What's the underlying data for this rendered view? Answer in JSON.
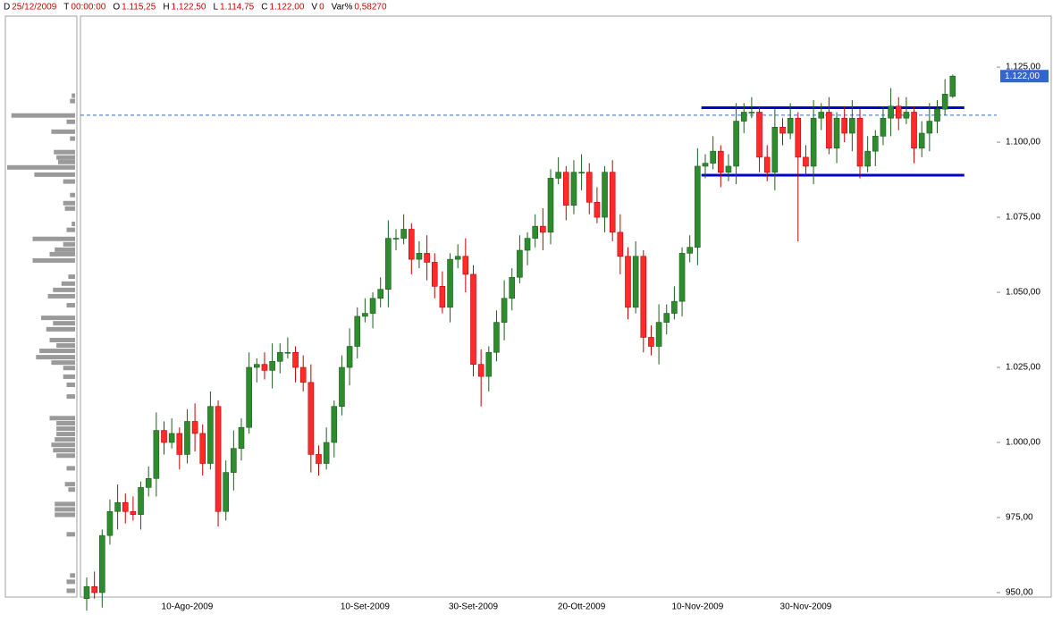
{
  "chart_data": {
    "type": "candlestick",
    "header": [
      {
        "label": "D",
        "value": "25/12/2009"
      },
      {
        "label": "T",
        "value": "00:00:00"
      },
      {
        "label": "O",
        "value": "1.115,25"
      },
      {
        "label": "H",
        "value": "1.122,50"
      },
      {
        "label": "L",
        "value": "1.114,75"
      },
      {
        "label": "C",
        "value": "1.122,00"
      },
      {
        "label": "V",
        "value": "0"
      },
      {
        "label": "Var%",
        "value": "0,58270"
      }
    ],
    "categories": [
      null,
      null,
      null,
      null,
      null,
      null,
      null,
      null,
      null,
      null,
      null,
      null,
      null,
      "10-Ago-2009",
      null,
      null,
      null,
      null,
      null,
      null,
      null,
      null,
      null,
      null,
      null,
      null,
      null,
      null,
      null,
      null,
      null,
      null,
      null,
      null,
      null,
      null,
      "10-Set-2009",
      null,
      null,
      null,
      null,
      null,
      null,
      null,
      null,
      null,
      null,
      null,
      null,
      null,
      "30-Set-2009",
      null,
      null,
      null,
      null,
      null,
      null,
      null,
      null,
      null,
      null,
      null,
      null,
      null,
      "20-Ott-2009",
      null,
      null,
      null,
      null,
      null,
      null,
      null,
      null,
      null,
      null,
      null,
      null,
      null,
      null,
      "10-Nov-2009",
      null,
      null,
      null,
      null,
      null,
      null,
      null,
      null,
      null,
      null,
      null,
      null,
      null,
      "30-Nov-2009",
      null,
      null,
      null,
      null,
      null,
      null,
      null,
      null,
      null,
      null,
      null,
      null,
      null,
      null,
      null,
      null,
      null,
      null,
      null
    ],
    "open": [
      948,
      952,
      950,
      969,
      977,
      980,
      977,
      976,
      985,
      988,
      1004,
      1000,
      1003,
      996,
      1007,
      1003,
      993,
      1012,
      977,
      990,
      998,
      1005,
      1025,
      1026,
      1024,
      1027,
      1030,
      1030,
      1025,
      1020,
      996,
      993,
      1000,
      1012,
      1025,
      1032,
      1042,
      1043,
      1048,
      1051,
      1068,
      1068,
      1071,
      1061,
      1063,
      1060,
      1052,
      1045,
      1061,
      1062,
      1056,
      1026,
      1022,
      1030,
      1040,
      1048,
      1055,
      1064,
      1068,
      1072,
      1070,
      1088,
      1090,
      1079,
      1090,
      1090,
      1080,
      1075,
      1090,
      1070,
      1062,
      1045,
      1062,
      1035,
      1032,
      1040,
      1043,
      1047,
      1063,
      1065,
      1092,
      1093,
      1097,
      1090,
      1092,
      1107,
      1110,
      1110,
      1095,
      1090,
      1105,
      1103,
      1108,
      1095,
      1092,
      1108,
      1110,
      1098,
      1108,
      1103,
      1108,
      1092,
      1097,
      1102,
      1108,
      1112,
      1108,
      1110,
      1098,
      1103,
      1107,
      1111,
      1115.25
    ],
    "high": [
      955,
      957,
      971,
      981,
      986,
      983,
      982,
      987,
      992,
      1010,
      1007,
      1008,
      1005,
      1011,
      1013,
      1006,
      1017,
      1014,
      994,
      1004,
      1008,
      1030,
      1028,
      1030,
      1033,
      1033,
      1035,
      1032,
      1029,
      1026,
      999,
      1005,
      1014,
      1029,
      1038,
      1045,
      1048,
      1050,
      1055,
      1074,
      1071,
      1076,
      1073,
      1067,
      1069,
      1063,
      1057,
      1063,
      1066,
      1068,
      1059,
      1031,
      1032,
      1044,
      1054,
      1058,
      1069,
      1070,
      1076,
      1078,
      1091,
      1095,
      1092,
      1094,
      1096,
      1093,
      1085,
      1092,
      1094,
      1076,
      1065,
      1067,
      1064,
      1039,
      1046,
      1046,
      1052,
      1065,
      1069,
      1098,
      1096,
      1102,
      1099,
      1096,
      1113,
      1113,
      1115,
      1112,
      1099,
      1111,
      1108,
      1113,
      1110,
      1099,
      1114,
      1113,
      1115,
      1110,
      1112,
      1114,
      1111,
      1102,
      1104,
      1112,
      1118,
      1115,
      1115,
      1112,
      1107,
      1113,
      1114,
      1121,
      1122.5
    ],
    "low": [
      944,
      948,
      945,
      966,
      971,
      973,
      974,
      971,
      982,
      982,
      996,
      998,
      991,
      993,
      997,
      989,
      991,
      972,
      974,
      984,
      994,
      1003,
      1020,
      1021,
      1018,
      1023,
      1028,
      1020,
      1017,
      990,
      989,
      991,
      995,
      1009,
      1019,
      1028,
      1040,
      1038,
      1045,
      1045,
      1064,
      1066,
      1056,
      1058,
      1054,
      1048,
      1043,
      1040,
      1058,
      1050,
      1022,
      1012,
      1017,
      1027,
      1034,
      1044,
      1053,
      1059,
      1065,
      1064,
      1066,
      1086,
      1074,
      1076,
      1084,
      1076,
      1073,
      1070,
      1067,
      1056,
      1041,
      1043,
      1030,
      1029,
      1026,
      1036,
      1041,
      1042,
      1060,
      1059,
      1088,
      1091,
      1085,
      1087,
      1086,
      1103,
      1108,
      1090,
      1087,
      1084,
      1099,
      1101,
      1067,
      1089,
      1086,
      1104,
      1096,
      1093,
      1100,
      1097,
      1088,
      1090,
      1092,
      1099,
      1102,
      1104,
      1106,
      1093,
      1095,
      1097,
      1103,
      1109,
      1114.75
    ],
    "close": [
      952,
      950,
      969,
      977,
      980,
      977,
      976,
      985,
      988,
      1004,
      1000,
      1003,
      996,
      1007,
      1003,
      993,
      1012,
      977,
      990,
      998,
      1005,
      1025,
      1026,
      1024,
      1027,
      1030,
      1030,
      1025,
      1020,
      996,
      993,
      1000,
      1012,
      1025,
      1032,
      1042,
      1043,
      1048,
      1051,
      1068,
      1068,
      1071,
      1061,
      1063,
      1060,
      1052,
      1045,
      1061,
      1062,
      1056,
      1026,
      1022,
      1030,
      1040,
      1048,
      1055,
      1064,
      1068,
      1072,
      1070,
      1088,
      1090,
      1079,
      1090,
      1090,
      1080,
      1075,
      1090,
      1070,
      1062,
      1045,
      1062,
      1035,
      1032,
      1040,
      1043,
      1047,
      1063,
      1065,
      1092,
      1093,
      1097,
      1090,
      1092,
      1107,
      1110,
      1110,
      1095,
      1090,
      1105,
      1103,
      1108,
      1095,
      1092,
      1108,
      1110,
      1098,
      1108,
      1103,
      1108,
      1092,
      1097,
      1102,
      1108,
      1112,
      1108,
      1110,
      1098,
      1103,
      1107,
      1111,
      1116,
      1122
    ],
    "up_color": "#2e8b2e",
    "down_color": "#ff2a2a",
    "ylim": [
      948.5,
      1142
    ],
    "yticks": [
      {
        "value": 950,
        "label": "950,00"
      },
      {
        "value": 975,
        "label": "975,00"
      },
      {
        "value": 1000,
        "label": "1.000,00"
      },
      {
        "value": 1025,
        "label": "1.025,00"
      },
      {
        "value": 1050,
        "label": "1.050,00"
      },
      {
        "value": 1075,
        "label": "1.075,00"
      },
      {
        "value": 1100,
        "label": "1.100,00"
      },
      {
        "value": 1125,
        "label": "1.125,00"
      }
    ],
    "grid": false,
    "last_price": {
      "value": 1122,
      "label": "1.122,00",
      "color": "#3366cc"
    },
    "annotations": [
      {
        "type": "hline",
        "value": 1109,
        "color": "#3366cc",
        "style": "dashed"
      },
      {
        "type": "segment",
        "value": 1111.5,
        "from": 79.5,
        "to": 113.5,
        "color": "#0000cc",
        "style": "solid"
      },
      {
        "type": "segment",
        "value": 1089,
        "from": 79.5,
        "to": 113.5,
        "color": "#0000cc",
        "style": "solid"
      }
    ],
    "volume_profile": {
      "color": "#9a9a9a",
      "xlim": [
        0,
        80
      ],
      "levels": [
        1115.5,
        1113.7,
        1108.9,
        1106.8,
        1103.5,
        1101.2,
        1096.7,
        1094.9,
        1093.4,
        1091.6,
        1089.2,
        1086.9,
        1082.4,
        1079.7,
        1077.9,
        1072.8,
        1070.8,
        1067.8,
        1066,
        1064.2,
        1062.7,
        1060.6,
        1055.2,
        1052.9,
        1050.8,
        1048.7,
        1045.7,
        1041.5,
        1039.7,
        1037.7,
        1034.1,
        1032.3,
        1030.5,
        1028.4,
        1026.6,
        1024.8,
        1021.9,
        1019.2,
        1015.3,
        1008.1,
        1006.4,
        1004.6,
        1002.8,
        1001,
        999.2,
        997.4,
        995.6,
        991.4,
        986.1,
        984.3,
        979.5,
        977.7,
        975.9,
        969.4,
        955.7,
        953.6,
        950.6
      ],
      "values": [
        4,
        6,
        75,
        10,
        28,
        6,
        25,
        22,
        20,
        80,
        48,
        14,
        6,
        14,
        12,
        4,
        10,
        50,
        14,
        24,
        30,
        50,
        8,
        16,
        26,
        32,
        10,
        40,
        26,
        34,
        30,
        22,
        42,
        46,
        28,
        14,
        14,
        10,
        10,
        30,
        22,
        22,
        22,
        24,
        28,
        26,
        22,
        10,
        12,
        8,
        24,
        24,
        24,
        10,
        6,
        10,
        10
      ]
    }
  }
}
